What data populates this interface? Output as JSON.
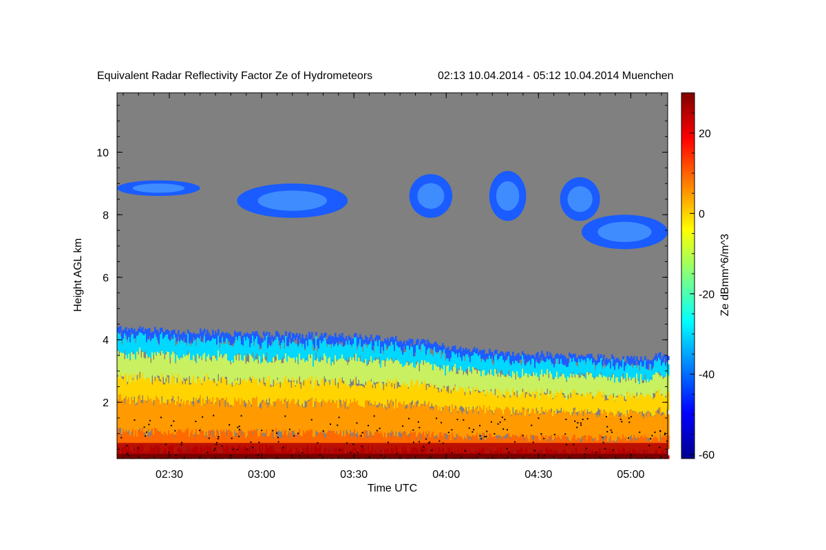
{
  "chart_data": {
    "type": "heatmap",
    "title": "Equivalent Radar Reflectivity Factor Ze of Hydrometeors",
    "subtitle": "02:13 10.04.2014 - 05:12 10.04.2014 Muenchen",
    "xlabel": "Time UTC",
    "ylabel": "Height AGL km",
    "colorbar_label": "Ze dBmm^6/m^3",
    "x_ticks": [
      "02:30",
      "03:00",
      "03:30",
      "04:00",
      "04:30",
      "05:00"
    ],
    "x_tick_minutes": [
      150,
      180,
      210,
      240,
      270,
      300
    ],
    "xlim_minutes": [
      133,
      312
    ],
    "y_ticks": [
      "2",
      "4",
      "6",
      "8",
      "10"
    ],
    "y_tick_values": [
      2,
      4,
      6,
      8,
      10
    ],
    "ylim": [
      0.2,
      11.9
    ],
    "colorbar_ticks": [
      "20",
      "0",
      "-20",
      "-40",
      "-60"
    ],
    "colorbar_tick_values": [
      20,
      0,
      -20,
      -40,
      -60
    ],
    "clim": [
      -61,
      30
    ],
    "background_color": "#808080",
    "colormap": [
      "#00008f",
      "#0000ff",
      "#0080ff",
      "#00ffff",
      "#80ff80",
      "#ffff00",
      "#ff8000",
      "#ff0000",
      "#800000"
    ],
    "lower_cloud": {
      "top_height_km": [
        4.4,
        4.3,
        4.2,
        4.15,
        4.1,
        4.0,
        3.8,
        3.6,
        3.55,
        3.45,
        3.4,
        3.5
      ],
      "top_time_minutes": [
        133,
        150,
        170,
        190,
        210,
        225,
        240,
        255,
        270,
        285,
        300,
        312
      ]
    },
    "upper_cloud_patches": [
      {
        "t0": 133,
        "t1": 160,
        "bottom": 8.6,
        "top": 9.1
      },
      {
        "t0": 172,
        "t1": 208,
        "bottom": 7.9,
        "top": 9.0
      },
      {
        "t0": 228,
        "t1": 242,
        "bottom": 7.9,
        "top": 9.3
      },
      {
        "t0": 254,
        "t1": 266,
        "bottom": 7.8,
        "top": 9.4
      },
      {
        "t0": 277,
        "t1": 290,
        "bottom": 7.8,
        "top": 9.2
      },
      {
        "t0": 284,
        "t1": 312,
        "bottom": 6.9,
        "top": 8.0
      }
    ]
  }
}
